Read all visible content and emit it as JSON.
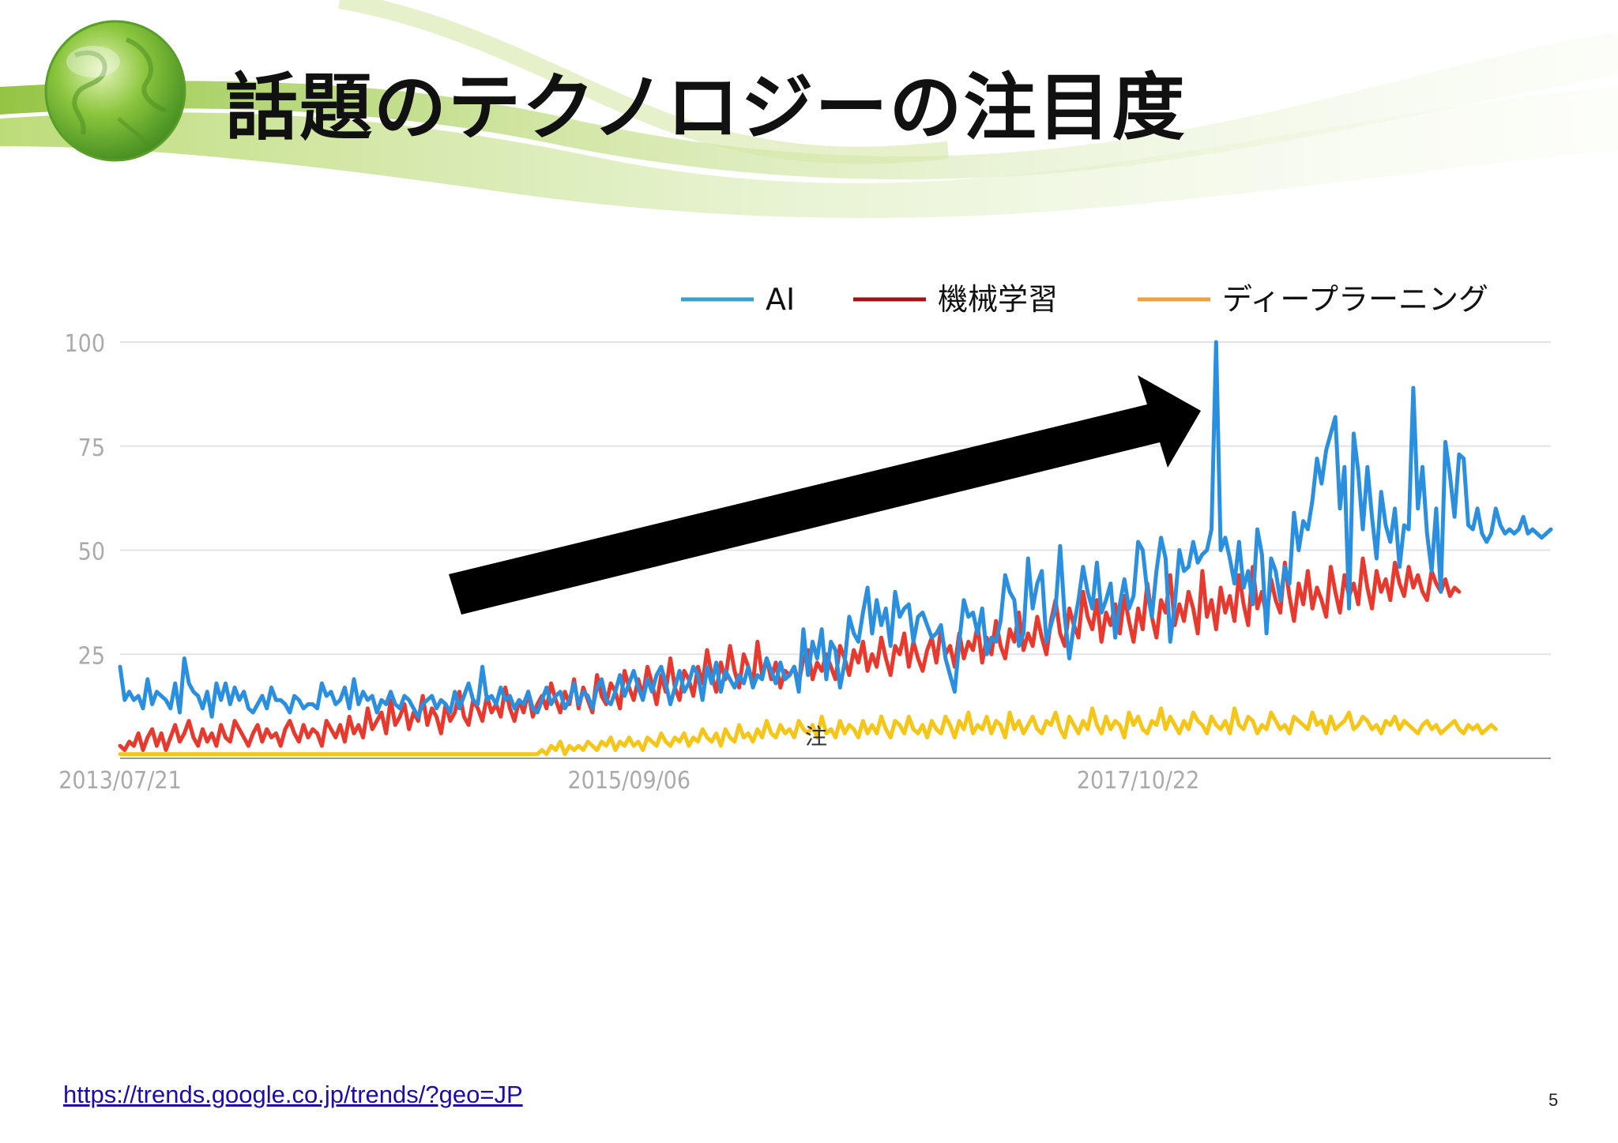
{
  "slide": {
    "title": "話題のテクノロジーの注目度",
    "source_url": "https://trends.google.co.jp/trends/?geo=JP",
    "page_number": "5",
    "annotation_mark": "注"
  },
  "colors": {
    "ai": "#2b8fe0",
    "ml": "#e8392f",
    "dl": "#f5c518",
    "legend_ai": "#3aa0c8",
    "legend_ml": "#a0141a",
    "legend_dl": "#f0a040",
    "arrow": "#000000",
    "banner_green": "#9cc83c"
  },
  "icons": {
    "globe": "globe-icon",
    "arrow": "trend-arrow"
  },
  "chart_data": {
    "type": "line",
    "ylim": [
      0,
      100
    ],
    "yticks": [
      "100",
      "75",
      "50",
      "25"
    ],
    "xticks": [
      "2013/07/21",
      "2015/09/06",
      "2017/10/22"
    ],
    "grid": true,
    "legend_position": "top-right",
    "x_start": "2013/07/21",
    "x_end": "2018/07/15",
    "x_interval": "weekly",
    "series": [
      {
        "name": "AI",
        "values": [
          22,
          14,
          16,
          14,
          15,
          12,
          19,
          13,
          16,
          15,
          14,
          12,
          18,
          11,
          24,
          18,
          16,
          15,
          12,
          16,
          10,
          18,
          14,
          18,
          13,
          17,
          14,
          16,
          12,
          11,
          13,
          15,
          12,
          17,
          14,
          14,
          13,
          11,
          15,
          14,
          12,
          13,
          13,
          12,
          18,
          15,
          16,
          13,
          14,
          17,
          12,
          19,
          13,
          16,
          14,
          15,
          11,
          14,
          13,
          16,
          13,
          12,
          15,
          14,
          12,
          10,
          13,
          14,
          15,
          12,
          14,
          13,
          11,
          16,
          12,
          15,
          18,
          14,
          13,
          22,
          14,
          15,
          13,
          17,
          14,
          15,
          12,
          14,
          13,
          16,
          12,
          11,
          14,
          17,
          13,
          15,
          16,
          12,
          14,
          18,
          13,
          16,
          15,
          12,
          17,
          19,
          14,
          13,
          16,
          20,
          15,
          18,
          21,
          17,
          14,
          19,
          16,
          20,
          22,
          18,
          13,
          17,
          21,
          16,
          18,
          22,
          20,
          14,
          22,
          18,
          23,
          16,
          21,
          19,
          17,
          20,
          18,
          22,
          17,
          20,
          19,
          24,
          21,
          18,
          23,
          19,
          20,
          22,
          16,
          31,
          20,
          28,
          24,
          31,
          19,
          28,
          26,
          17,
          23,
          34,
          30,
          28,
          35,
          41,
          30,
          38,
          32,
          36,
          27,
          40,
          34,
          36,
          37,
          28,
          34,
          35,
          32,
          29,
          30,
          32,
          24,
          20,
          16,
          28,
          38,
          34,
          35,
          30,
          36,
          25,
          29,
          28,
          33,
          44,
          40,
          38,
          27,
          30,
          48,
          36,
          42,
          45,
          28,
          32,
          36,
          51,
          34,
          24,
          32,
          38,
          46,
          40,
          36,
          47,
          35,
          38,
          42,
          29,
          37,
          43,
          36,
          39,
          52,
          50,
          40,
          34,
          45,
          53,
          48,
          28,
          37,
          50,
          45,
          46,
          52,
          47,
          49,
          50,
          55,
          100,
          50,
          53,
          48,
          42,
          52,
          41,
          45,
          37,
          55,
          49,
          30,
          48,
          45,
          38,
          46,
          42,
          59,
          50,
          57,
          55,
          62,
          72,
          66,
          74,
          78,
          82,
          60,
          70,
          36,
          78,
          69,
          55,
          70,
          58,
          48,
          64,
          56,
          52,
          60,
          46,
          56,
          55,
          89,
          60,
          70,
          54,
          45,
          60,
          40,
          76,
          68,
          58,
          73,
          72,
          56,
          55,
          60,
          54,
          52,
          54,
          60,
          56,
          54,
          55,
          54,
          55,
          58,
          54,
          55,
          54,
          53,
          54,
          55
        ]
      },
      {
        "name": "機械学習",
        "values": [
          3,
          2,
          4,
          3,
          6,
          2,
          5,
          7,
          3,
          6,
          2,
          5,
          8,
          4,
          6,
          9,
          5,
          3,
          7,
          4,
          6,
          3,
          8,
          5,
          4,
          9,
          7,
          5,
          3,
          6,
          8,
          4,
          7,
          5,
          6,
          3,
          7,
          9,
          6,
          4,
          8,
          5,
          7,
          6,
          3,
          9,
          7,
          5,
          8,
          4,
          10,
          6,
          8,
          5,
          12,
          7,
          9,
          11,
          6,
          14,
          8,
          10,
          13,
          7,
          11,
          9,
          15,
          8,
          12,
          10,
          6,
          13,
          9,
          11,
          16,
          10,
          8,
          14,
          12,
          9,
          15,
          11,
          13,
          10,
          17,
          12,
          9,
          14,
          11,
          16,
          10,
          13,
          15,
          12,
          18,
          14,
          11,
          16,
          13,
          19,
          12,
          17,
          14,
          11,
          20,
          15,
          13,
          18,
          16,
          12,
          21,
          17,
          14,
          19,
          15,
          22,
          18,
          13,
          20,
          16,
          24,
          17,
          14,
          21,
          19,
          15,
          22,
          18,
          26,
          20,
          16,
          23,
          19,
          27,
          21,
          17,
          25,
          22,
          18,
          28,
          20,
          24,
          19,
          23,
          17,
          21,
          20,
          22,
          18,
          24,
          26,
          19,
          23,
          21,
          25,
          22,
          19,
          27,
          24,
          20,
          26,
          23,
          28,
          21,
          25,
          22,
          29,
          24,
          20,
          27,
          25,
          30,
          22,
          28,
          24,
          21,
          26,
          29,
          23,
          31,
          25,
          27,
          22,
          30,
          24,
          28,
          26,
          32,
          23,
          29,
          25,
          33,
          27,
          24,
          31,
          28,
          35,
          26,
          30,
          27,
          34,
          29,
          25,
          33,
          38,
          30,
          27,
          36,
          32,
          29,
          40,
          34,
          31,
          38,
          28,
          35,
          32,
          37,
          30,
          39,
          33,
          28,
          36,
          31,
          42,
          34,
          29,
          38,
          35,
          44,
          32,
          37,
          33,
          40,
          36,
          30,
          45,
          34,
          38,
          31,
          41,
          35,
          39,
          33,
          44,
          37,
          32,
          46,
          36,
          40,
          34,
          43,
          38,
          35,
          47,
          39,
          33,
          42,
          37,
          45,
          36,
          41,
          38,
          34,
          46,
          40,
          35,
          44,
          39,
          42,
          37,
          48,
          41,
          36,
          45,
          40,
          43,
          38,
          47,
          42,
          39,
          46,
          41,
          44,
          40,
          38,
          45,
          42,
          40,
          43,
          39,
          41,
          40
        ]
      },
      {
        "name": "ディープラーニング",
        "values": [
          1,
          1,
          1,
          1,
          1,
          1,
          1,
          1,
          1,
          1,
          1,
          1,
          1,
          1,
          1,
          1,
          1,
          1,
          1,
          1,
          1,
          1,
          1,
          1,
          1,
          1,
          1,
          1,
          1,
          1,
          1,
          1,
          1,
          1,
          1,
          1,
          1,
          1,
          1,
          1,
          1,
          1,
          1,
          1,
          1,
          1,
          1,
          1,
          1,
          1,
          1,
          1,
          1,
          1,
          1,
          1,
          1,
          1,
          1,
          1,
          1,
          1,
          1,
          1,
          1,
          1,
          1,
          1,
          1,
          1,
          1,
          1,
          1,
          1,
          1,
          1,
          1,
          1,
          1,
          1,
          1,
          1,
          1,
          1,
          1,
          1,
          1,
          1,
          1,
          1,
          1,
          1,
          2,
          1,
          3,
          2,
          4,
          1,
          3,
          2,
          3,
          2,
          4,
          3,
          2,
          4,
          3,
          5,
          2,
          4,
          3,
          5,
          3,
          4,
          2,
          5,
          4,
          3,
          6,
          4,
          3,
          5,
          4,
          6,
          3,
          5,
          4,
          7,
          5,
          4,
          6,
          3,
          7,
          5,
          4,
          8,
          5,
          6,
          4,
          7,
          5,
          9,
          6,
          5,
          8,
          6,
          7,
          5,
          9,
          7,
          6,
          8,
          5,
          10,
          6,
          7,
          5,
          9,
          6,
          8,
          7,
          5,
          9,
          6,
          8,
          6,
          10,
          7,
          5,
          9,
          8,
          6,
          10,
          7,
          6,
          8,
          5,
          9,
          7,
          6,
          10,
          8,
          5,
          9,
          7,
          11,
          6,
          8,
          7,
          10,
          6,
          9,
          8,
          5,
          11,
          7,
          9,
          6,
          8,
          10,
          7,
          6,
          9,
          8,
          11,
          7,
          5,
          10,
          8,
          6,
          9,
          7,
          12,
          8,
          6,
          10,
          7,
          9,
          8,
          5,
          11,
          8,
          10,
          7,
          6,
          9,
          8,
          12,
          7,
          10,
          8,
          6,
          9,
          7,
          11,
          9,
          8,
          6,
          10,
          8,
          7,
          9,
          6,
          12,
          8,
          7,
          10,
          9,
          6,
          8,
          7,
          11,
          9,
          7,
          8,
          6,
          10,
          9,
          8,
          7,
          11,
          8,
          9,
          6,
          10,
          7,
          8,
          9,
          11,
          7,
          8,
          10,
          9,
          7,
          8,
          6,
          9,
          8,
          10,
          7,
          9,
          8,
          7,
          6,
          8,
          9,
          7,
          8,
          6,
          7,
          8,
          9,
          7,
          6,
          8,
          7,
          8,
          6,
          7,
          8,
          7
        ]
      }
    ]
  }
}
